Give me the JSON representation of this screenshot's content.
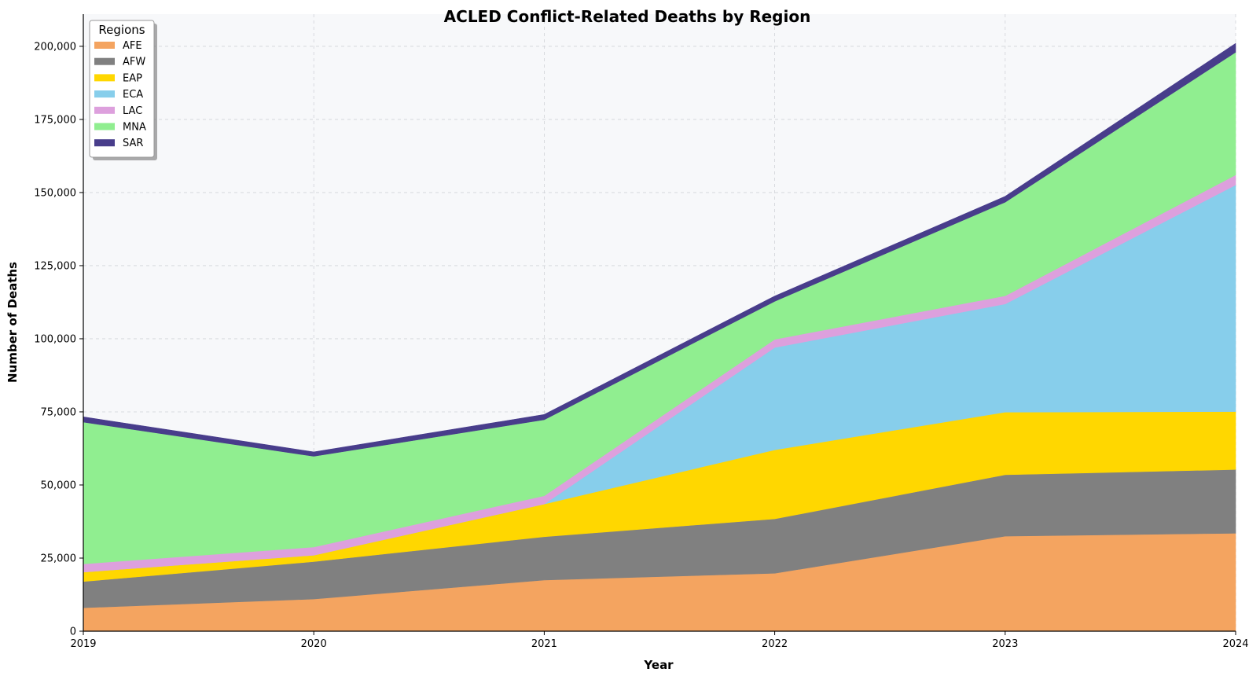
{
  "chart_data": {
    "type": "area",
    "stacked": true,
    "title": "ACLED Conflict-Related Deaths by Region",
    "xlabel": "Year",
    "ylabel": "Number of Deaths",
    "x": [
      2019,
      2020,
      2021,
      2022,
      2023,
      2024
    ],
    "x_tick_labels": [
      "2019",
      "2020",
      "2021",
      "2022",
      "2023",
      "2024"
    ],
    "xlim": [
      2019,
      2024
    ],
    "ylim": [
      0,
      211000
    ],
    "y_ticks": [
      0,
      25000,
      50000,
      75000,
      100000,
      125000,
      150000,
      175000,
      200000
    ],
    "y_tick_labels": [
      "0",
      "25,000",
      "50,000",
      "75,000",
      "100,000",
      "125,000",
      "150,000",
      "175,000",
      "200,000"
    ],
    "grid": true,
    "legend_title": "Regions",
    "legend_position": "top-left",
    "series": [
      {
        "name": "AFE",
        "color": "#F4A460",
        "values": [
          8000,
          11000,
          17500,
          19800,
          32500,
          33500
        ]
      },
      {
        "name": "AFW",
        "color": "#808080",
        "values": [
          9000,
          12800,
          14800,
          18600,
          21000,
          21800
        ]
      },
      {
        "name": "EAP",
        "color": "#FFD700",
        "values": [
          3200,
          2200,
          11200,
          23600,
          21400,
          19800
        ]
      },
      {
        "name": "ECA",
        "color": "#87CEEB",
        "values": [
          0,
          0,
          0,
          35000,
          37000,
          77500
        ]
      },
      {
        "name": "LAC",
        "color": "#DDA0DD",
        "values": [
          2800,
          2800,
          2800,
          2800,
          2800,
          3400
        ]
      },
      {
        "name": "MNA",
        "color": "#90EE90",
        "values": [
          48500,
          31000,
          26000,
          13000,
          32000,
          42000
        ]
      },
      {
        "name": "SAR",
        "color": "#483D8B",
        "values": [
          1800,
          1500,
          1800,
          1800,
          2000,
          3000
        ]
      }
    ]
  }
}
